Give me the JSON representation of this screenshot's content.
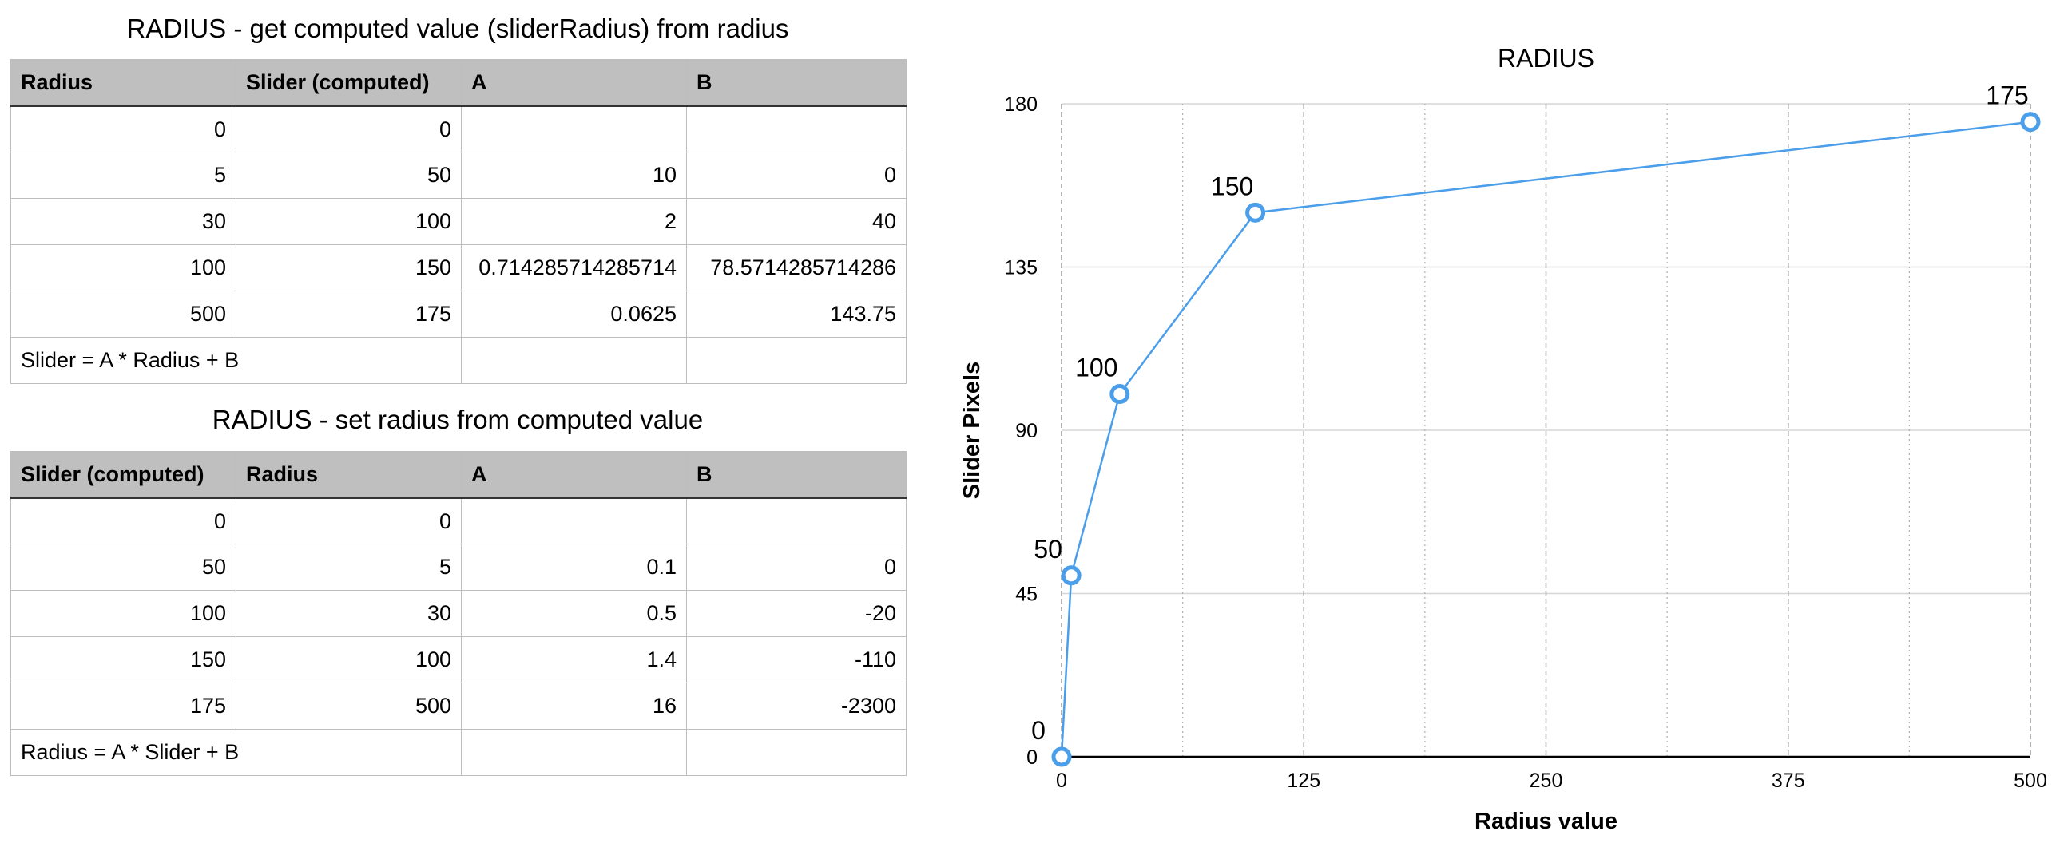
{
  "table1": {
    "title": "RADIUS - get computed value (sliderRadius) from radius",
    "headers": [
      "Radius",
      "Slider (computed)",
      "A",
      "B"
    ],
    "rows": [
      [
        "0",
        "0",
        "",
        ""
      ],
      [
        "5",
        "50",
        "10",
        "0"
      ],
      [
        "30",
        "100",
        "2",
        "40"
      ],
      [
        "100",
        "150",
        "0.714285714285714",
        "78.5714285714286"
      ],
      [
        "500",
        "175",
        "0.0625",
        "143.75"
      ]
    ],
    "formula": "Slider = A * Radius + B"
  },
  "table2": {
    "title": "RADIUS - set radius from computed value",
    "headers": [
      "Slider (computed)",
      "Radius",
      "A",
      "B"
    ],
    "rows": [
      [
        "0",
        "0",
        "",
        ""
      ],
      [
        "50",
        "5",
        "0.1",
        "0"
      ],
      [
        "100",
        "30",
        "0.5",
        "-20"
      ],
      [
        "150",
        "100",
        "1.4",
        "-110"
      ],
      [
        "175",
        "500",
        "16",
        "-2300"
      ]
    ],
    "formula": "Radius = A * Slider + B"
  },
  "chart_data": {
    "type": "line",
    "title": "RADIUS",
    "xlabel": "Radius value",
    "ylabel": "Slider Pixels",
    "xlim": [
      0,
      500
    ],
    "ylim": [
      0,
      180
    ],
    "xticks": [
      0,
      125,
      250,
      375,
      500
    ],
    "yticks": [
      0,
      45,
      90,
      135,
      180
    ],
    "grid": true,
    "series": [
      {
        "color": "#4a9eea",
        "x": [
          0,
          5,
          30,
          100,
          500
        ],
        "y": [
          0,
          50,
          100,
          150,
          175
        ],
        "labels": [
          "0",
          "50",
          "100",
          "150",
          "175"
        ]
      }
    ]
  }
}
